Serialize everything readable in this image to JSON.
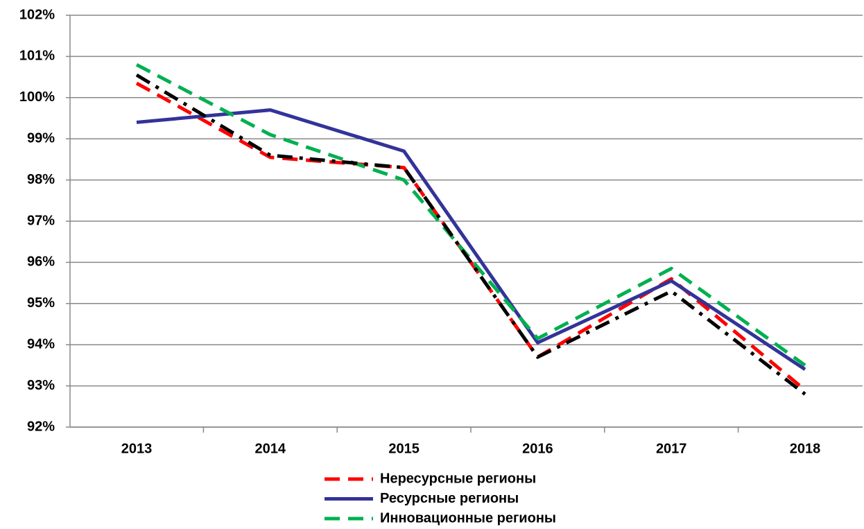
{
  "chart_data": {
    "type": "line",
    "categories": [
      "2013",
      "2014",
      "2015",
      "2016",
      "2017",
      "2018"
    ],
    "series": [
      {
        "name": "Нересурсные регионы",
        "color": "#ff0000",
        "style": "dashed",
        "values": [
          100.35,
          98.55,
          98.3,
          93.7,
          95.6,
          92.9
        ]
      },
      {
        "name": "Ресурсные регионы",
        "color": "#333399",
        "style": "solid",
        "values": [
          99.4,
          99.7,
          98.7,
          94.05,
          95.55,
          93.4
        ]
      },
      {
        "name": "Инновационные регионы",
        "color": "#00b050",
        "style": "dashed",
        "values": [
          100.8,
          99.1,
          98.0,
          94.15,
          95.85,
          93.5
        ]
      },
      {
        "color": "#000000",
        "style": "dashdot",
        "values": [
          100.55,
          98.6,
          98.3,
          93.7,
          95.3,
          92.8
        ]
      }
    ],
    "ylim": [
      92,
      102
    ],
    "yticks": [
      {
        "value": 92,
        "label": "92%"
      },
      {
        "value": 93,
        "label": "93%"
      },
      {
        "value": 94,
        "label": "94%"
      },
      {
        "value": 95,
        "label": "95%"
      },
      {
        "value": 96,
        "label": "96%"
      },
      {
        "value": 97,
        "label": "97%"
      },
      {
        "value": 98,
        "label": "98%"
      },
      {
        "value": 99,
        "label": "99%"
      },
      {
        "value": 100,
        "label": "100%"
      },
      {
        "value": 101,
        "label": "101%"
      },
      {
        "value": 102,
        "label": "102%"
      }
    ],
    "grid": true
  }
}
